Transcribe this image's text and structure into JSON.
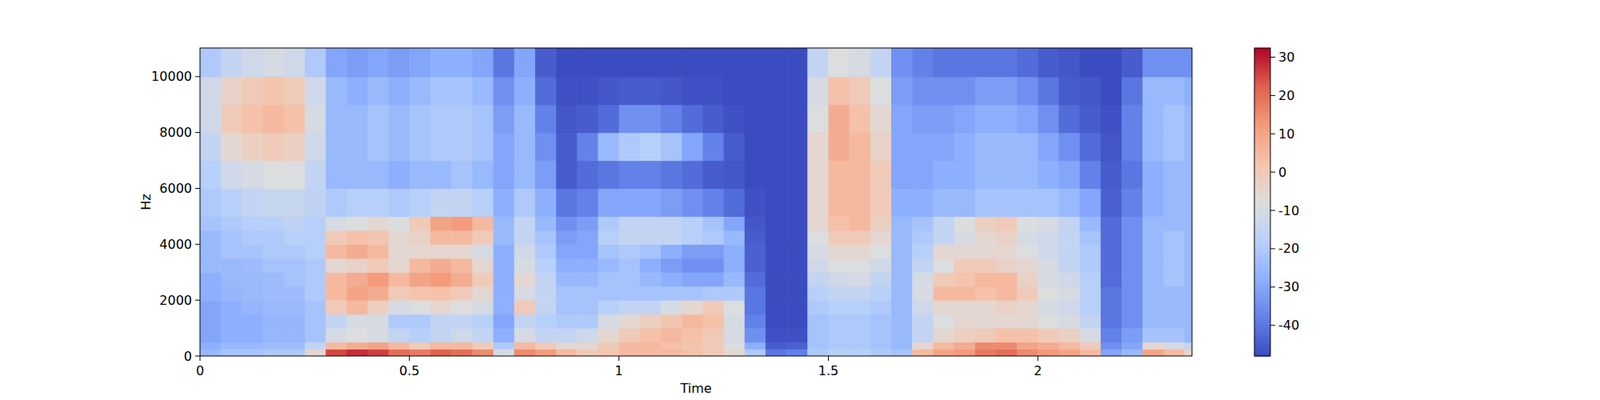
{
  "chart_data": {
    "type": "heatmap",
    "x_label": "Time",
    "y_label": "Hz",
    "xlim": [
      0,
      2.368
    ],
    "ylim": [
      0,
      11025
    ],
    "xticks": [
      0,
      0.5,
      1,
      1.5,
      2
    ],
    "yticks": [
      0,
      2000,
      4000,
      6000,
      8000,
      10000
    ],
    "x_edges": [
      0,
      0.05,
      0.1,
      0.15,
      0.2,
      0.25,
      0.3,
      0.35,
      0.4,
      0.45,
      0.5,
      0.55,
      0.6,
      0.65,
      0.7,
      0.75,
      0.8,
      0.85,
      0.9,
      0.95,
      1.0,
      1.05,
      1.1,
      1.15,
      1.2,
      1.25,
      1.3,
      1.35,
      1.4,
      1.45,
      1.5,
      1.55,
      1.6,
      1.65,
      1.7,
      1.75,
      1.8,
      1.85,
      1.9,
      1.95,
      2.0,
      2.05,
      2.1,
      2.15,
      2.2,
      2.25,
      2.3,
      2.35,
      2.368
    ],
    "y_edges": [
      0,
      250,
      500,
      1000,
      1500,
      2000,
      2500,
      3000,
      3500,
      4000,
      4500,
      5000,
      6000,
      7000,
      8000,
      9000,
      10000,
      11025
    ],
    "cells": [
      [
        -25,
        -28,
        -30,
        -30,
        -30,
        -28,
        -28,
        -25,
        -25,
        -25,
        -22,
        -20,
        -18,
        -15,
        -12,
        -12,
        -20
      ],
      [
        -22,
        -25,
        -28,
        -28,
        -28,
        -26,
        -25,
        -25,
        -22,
        -22,
        -20,
        -18,
        -12,
        -5,
        0,
        -3,
        -15
      ],
      [
        -22,
        -25,
        -28,
        -28,
        -26,
        -25,
        -25,
        -24,
        -22,
        -20,
        -18,
        -15,
        -10,
        -2,
        3,
        0,
        -12
      ],
      [
        -20,
        -24,
        -26,
        -26,
        -25,
        -24,
        -24,
        -22,
        -20,
        -20,
        -18,
        -14,
        -8,
        0,
        5,
        2,
        -10
      ],
      [
        -20,
        -24,
        -26,
        -26,
        -25,
        -24,
        -22,
        -22,
        -20,
        -18,
        -16,
        -14,
        -8,
        -2,
        3,
        0,
        -12
      ],
      [
        -5,
        -15,
        -22,
        -22,
        -22,
        -20,
        -20,
        -20,
        -18,
        -18,
        -18,
        -16,
        -15,
        -12,
        -10,
        -12,
        -20
      ],
      [
        25,
        5,
        -10,
        -15,
        0,
        5,
        5,
        -5,
        5,
        0,
        -10,
        -20,
        -25,
        -25,
        -25,
        -25,
        -30
      ],
      [
        28,
        8,
        -8,
        -10,
        5,
        10,
        8,
        -3,
        8,
        3,
        -8,
        -18,
        -25,
        -25,
        -25,
        -28,
        -32
      ],
      [
        26,
        10,
        -10,
        -10,
        -2,
        8,
        12,
        0,
        5,
        2,
        -5,
        -18,
        -25,
        -22,
        -22,
        -25,
        -30
      ],
      [
        20,
        5,
        -15,
        -20,
        -10,
        0,
        5,
        -5,
        -5,
        -5,
        -8,
        -20,
        -28,
        -25,
        -25,
        -28,
        -32
      ],
      [
        18,
        0,
        -18,
        -20,
        -8,
        2,
        10,
        5,
        -5,
        -3,
        0,
        -18,
        -25,
        -22,
        -22,
        -25,
        -30
      ],
      [
        22,
        5,
        -15,
        -15,
        -5,
        3,
        12,
        8,
        -5,
        5,
        10,
        -15,
        -25,
        -20,
        -20,
        -22,
        -28
      ],
      [
        20,
        5,
        -12,
        -15,
        -8,
        0,
        8,
        5,
        -5,
        5,
        12,
        -15,
        -22,
        -20,
        -20,
        -22,
        -28
      ],
      [
        15,
        0,
        -15,
        -18,
        -10,
        -5,
        0,
        -5,
        -10,
        0,
        5,
        -18,
        -25,
        -22,
        -22,
        -25,
        -30
      ],
      [
        -10,
        -20,
        -28,
        -30,
        -28,
        -28,
        -28,
        -28,
        -28,
        -25,
        -25,
        -28,
        -30,
        -30,
        -32,
        -35,
        -40
      ],
      [
        15,
        5,
        -10,
        -15,
        0,
        -10,
        -5,
        -10,
        -12,
        -15,
        -15,
        -20,
        -25,
        -25,
        -25,
        -28,
        -30
      ],
      [
        12,
        0,
        -15,
        -18,
        -15,
        -15,
        -15,
        -18,
        -20,
        -22,
        -25,
        -28,
        -32,
        -35,
        -38,
        -42,
        -45
      ],
      [
        5,
        -5,
        -15,
        -20,
        -22,
        -22,
        -25,
        -28,
        -30,
        -32,
        -35,
        -40,
        -45,
        -45,
        -46,
        -47,
        -48
      ],
      [
        0,
        -5,
        -12,
        -20,
        -22,
        -22,
        -25,
        -28,
        -30,
        -30,
        -32,
        -38,
        -42,
        -38,
        -45,
        -47,
        -48
      ],
      [
        2,
        0,
        -5,
        -10,
        -18,
        -22,
        -22,
        -25,
        -22,
        -18,
        -20,
        -30,
        -40,
        -25,
        -42,
        -46,
        -48
      ],
      [
        5,
        5,
        0,
        -5,
        -15,
        -22,
        -22,
        -22,
        -20,
        -15,
        -15,
        -30,
        -38,
        -20,
        -35,
        -45,
        -48
      ],
      [
        5,
        5,
        3,
        -2,
        -15,
        -22,
        -25,
        -28,
        -22,
        -15,
        -15,
        -30,
        -38,
        -18,
        -35,
        -45,
        -48
      ],
      [
        5,
        3,
        5,
        2,
        -10,
        -22,
        -28,
        -32,
        -28,
        -15,
        -15,
        -32,
        -40,
        -22,
        -38,
        -46,
        -48
      ],
      [
        3,
        2,
        3,
        5,
        -5,
        -22,
        -30,
        -35,
        -32,
        -18,
        -18,
        -35,
        -42,
        -30,
        -42,
        -47,
        -48
      ],
      [
        0,
        0,
        0,
        3,
        0,
        -20,
        -30,
        -35,
        -32,
        -20,
        -22,
        -38,
        -45,
        -38,
        -45,
        -47,
        -48
      ],
      [
        -5,
        -8,
        -10,
        -10,
        -8,
        -20,
        -25,
        -28,
        -28,
        -25,
        -30,
        -42,
        -46,
        -45,
        -47,
        -48,
        -48
      ],
      [
        -20,
        -28,
        -35,
        -38,
        -40,
        -40,
        -42,
        -44,
        -44,
        -45,
        -46,
        -47,
        -48,
        -48,
        -48,
        -48,
        -48
      ],
      [
        -40,
        -45,
        -47,
        -48,
        -48,
        -48,
        -48,
        -48,
        -48,
        -48,
        -48,
        -48,
        -48,
        -48,
        -48,
        -48,
        -48
      ],
      [
        -38,
        -44,
        -47,
        -48,
        -48,
        -48,
        -48,
        -48,
        -48,
        -48,
        -48,
        -48,
        -48,
        -48,
        -48,
        -48,
        -48
      ],
      [
        -20,
        -22,
        -22,
        -22,
        -20,
        -18,
        -15,
        -12,
        -10,
        -8,
        -5,
        -5,
        -5,
        -5,
        -8,
        -10,
        -15
      ],
      [
        -18,
        -20,
        -20,
        -20,
        -18,
        -15,
        -12,
        -8,
        -5,
        0,
        3,
        5,
        5,
        8,
        8,
        3,
        -8
      ],
      [
        -18,
        -20,
        -20,
        -20,
        -18,
        -15,
        -10,
        -8,
        -5,
        0,
        5,
        5,
        5,
        5,
        3,
        0,
        -10
      ],
      [
        -20,
        -22,
        -22,
        -22,
        -20,
        -18,
        -15,
        -12,
        -8,
        -5,
        -2,
        0,
        0,
        -3,
        -5,
        -8,
        -15
      ],
      [
        -22,
        -25,
        -25,
        -25,
        -25,
        -25,
        -25,
        -25,
        -25,
        -25,
        -25,
        -28,
        -30,
        -30,
        -30,
        -32,
        -35
      ],
      [
        5,
        -5,
        -15,
        -15,
        -12,
        -10,
        -10,
        -15,
        -18,
        -20,
        -22,
        -28,
        -30,
        -30,
        -32,
        -35,
        -38
      ],
      [
        10,
        5,
        -5,
        -8,
        -5,
        5,
        0,
        -8,
        -5,
        -15,
        -15,
        -25,
        -28,
        -30,
        -32,
        -35,
        -40
      ],
      [
        12,
        8,
        -2,
        -5,
        -5,
        5,
        2,
        0,
        -5,
        -10,
        -8,
        -25,
        -28,
        -28,
        -30,
        -35,
        -40
      ],
      [
        18,
        15,
        0,
        -5,
        -5,
        3,
        5,
        0,
        -5,
        -5,
        -2,
        -22,
        -25,
        -25,
        -28,
        -32,
        -40
      ],
      [
        20,
        15,
        3,
        -5,
        -3,
        5,
        5,
        -3,
        -5,
        -3,
        0,
        -22,
        -25,
        -25,
        -28,
        -32,
        -40
      ],
      [
        15,
        10,
        3,
        -5,
        -5,
        0,
        -3,
        -5,
        -8,
        -10,
        -8,
        -22,
        -25,
        -25,
        -30,
        -35,
        -42
      ],
      [
        12,
        8,
        0,
        -8,
        -10,
        -8,
        -10,
        -10,
        -12,
        -12,
        -10,
        -22,
        -28,
        -30,
        -35,
        -40,
        -45
      ],
      [
        10,
        5,
        -2,
        -10,
        -12,
        -10,
        -12,
        -15,
        -15,
        -15,
        -15,
        -25,
        -30,
        -35,
        -42,
        -45,
        -46
      ],
      [
        5,
        0,
        -10,
        -15,
        -18,
        -18,
        -18,
        -20,
        -20,
        -22,
        -25,
        -30,
        -38,
        -42,
        -45,
        -46,
        -48
      ],
      [
        -30,
        -35,
        -38,
        -40,
        -40,
        -40,
        -42,
        -42,
        -42,
        -42,
        -42,
        -44,
        -45,
        -46,
        -47,
        -48,
        -48
      ],
      [
        -25,
        -30,
        -32,
        -35,
        -35,
        -35,
        -35,
        -35,
        -35,
        -35,
        -35,
        -38,
        -40,
        -38,
        -38,
        -40,
        -45
      ],
      [
        10,
        -5,
        -22,
        -25,
        -25,
        -25,
        -25,
        -25,
        -25,
        -25,
        -25,
        -28,
        -28,
        -25,
        -25,
        -25,
        -35
      ],
      [
        5,
        -10,
        -22,
        -25,
        -25,
        -25,
        -22,
        -22,
        -22,
        -22,
        -25,
        -25,
        -25,
        -22,
        -22,
        -25,
        -35
      ],
      [
        -5,
        -15,
        -25,
        -25,
        -25,
        -25,
        -25,
        -25,
        -25,
        -25,
        -25,
        -25,
        -25,
        -25,
        -25,
        -28,
        -35
      ]
    ],
    "colorbar": {
      "range": [
        -48,
        32.4
      ],
      "ticks": [
        -40,
        -30,
        -20,
        -10,
        0,
        10,
        20,
        30
      ]
    }
  }
}
